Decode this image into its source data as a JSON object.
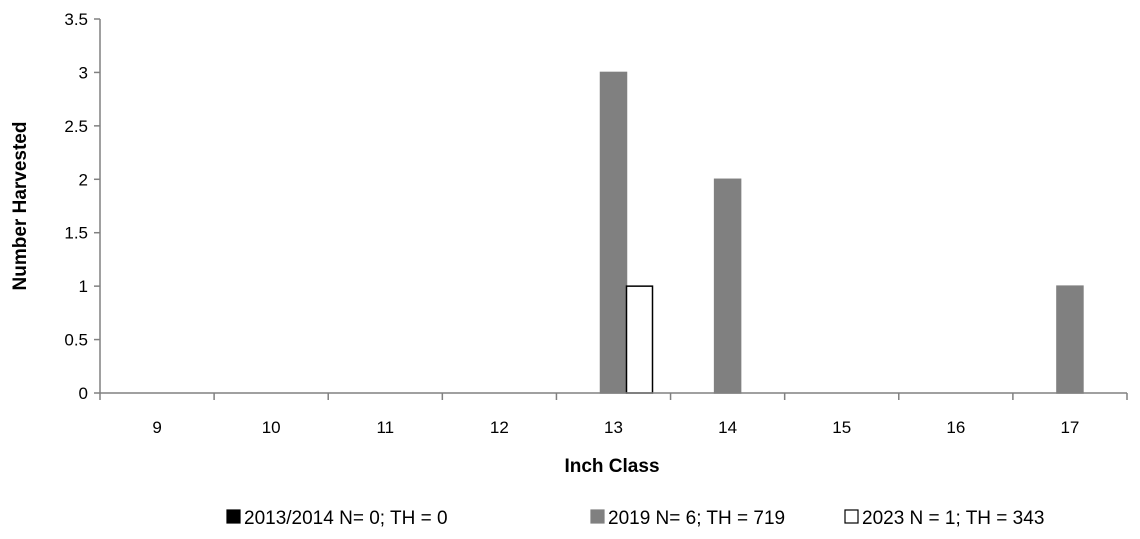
{
  "colors": {
    "axis": "#808080",
    "series": [
      "#000000",
      "#808080",
      "#ffffff"
    ],
    "series_stroke": [
      "#000000",
      "#808080",
      "#000000"
    ]
  },
  "chart_data": {
    "type": "bar",
    "title": "",
    "xlabel": "Inch Class",
    "ylabel": "Number Harvested",
    "categories": [
      "9",
      "10",
      "11",
      "12",
      "13",
      "14",
      "15",
      "16",
      "17"
    ],
    "ylim": [
      0,
      3.5
    ],
    "yticks": [
      "0",
      "0.5",
      "1",
      "1.5",
      "2",
      "2.5",
      "3",
      "3.5"
    ],
    "grid": false,
    "legend_position": "bottom",
    "series": [
      {
        "name": "2013/2014 N= 0; TH = 0",
        "values": [
          0,
          0,
          0,
          0,
          0,
          0,
          0,
          0,
          0
        ]
      },
      {
        "name": "2019 N= 6; TH = 719",
        "values": [
          0,
          0,
          0,
          0,
          3,
          2,
          0,
          0,
          1
        ]
      },
      {
        "name": "2023 N = 1; TH = 343",
        "values": [
          0,
          0,
          0,
          0,
          1,
          0,
          0,
          0,
          0
        ]
      }
    ]
  }
}
